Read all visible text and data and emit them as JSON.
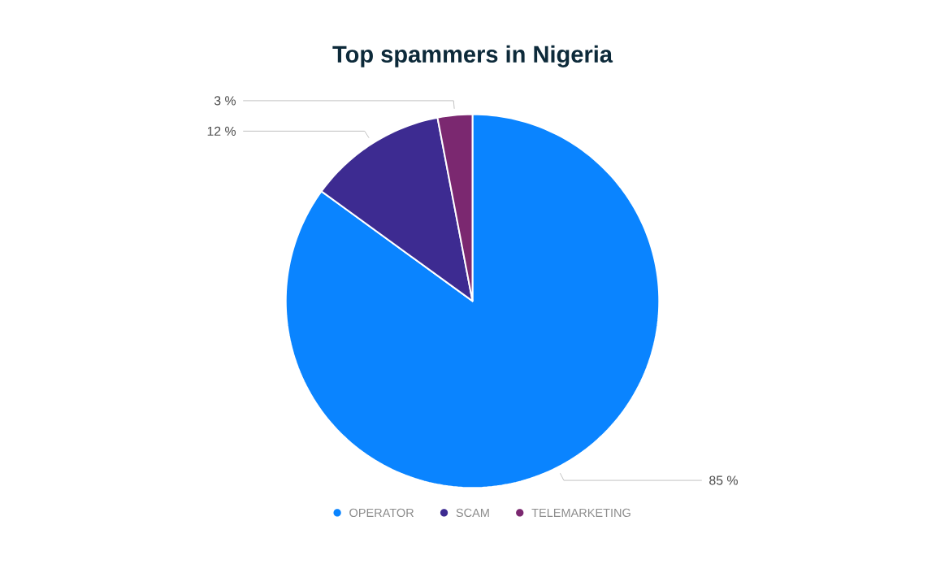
{
  "chart_data": {
    "type": "pie",
    "title": "Top spammers in Nigeria",
    "categories": [
      "OPERATOR",
      "SCAM",
      "TELEMARKETING"
    ],
    "values": [
      85,
      12,
      3
    ],
    "value_labels": [
      "85 %",
      "12 %",
      "3 %"
    ],
    "colors": [
      "#0a84ff",
      "#3d2b91",
      "#7b2870"
    ],
    "legend": "bottom"
  }
}
